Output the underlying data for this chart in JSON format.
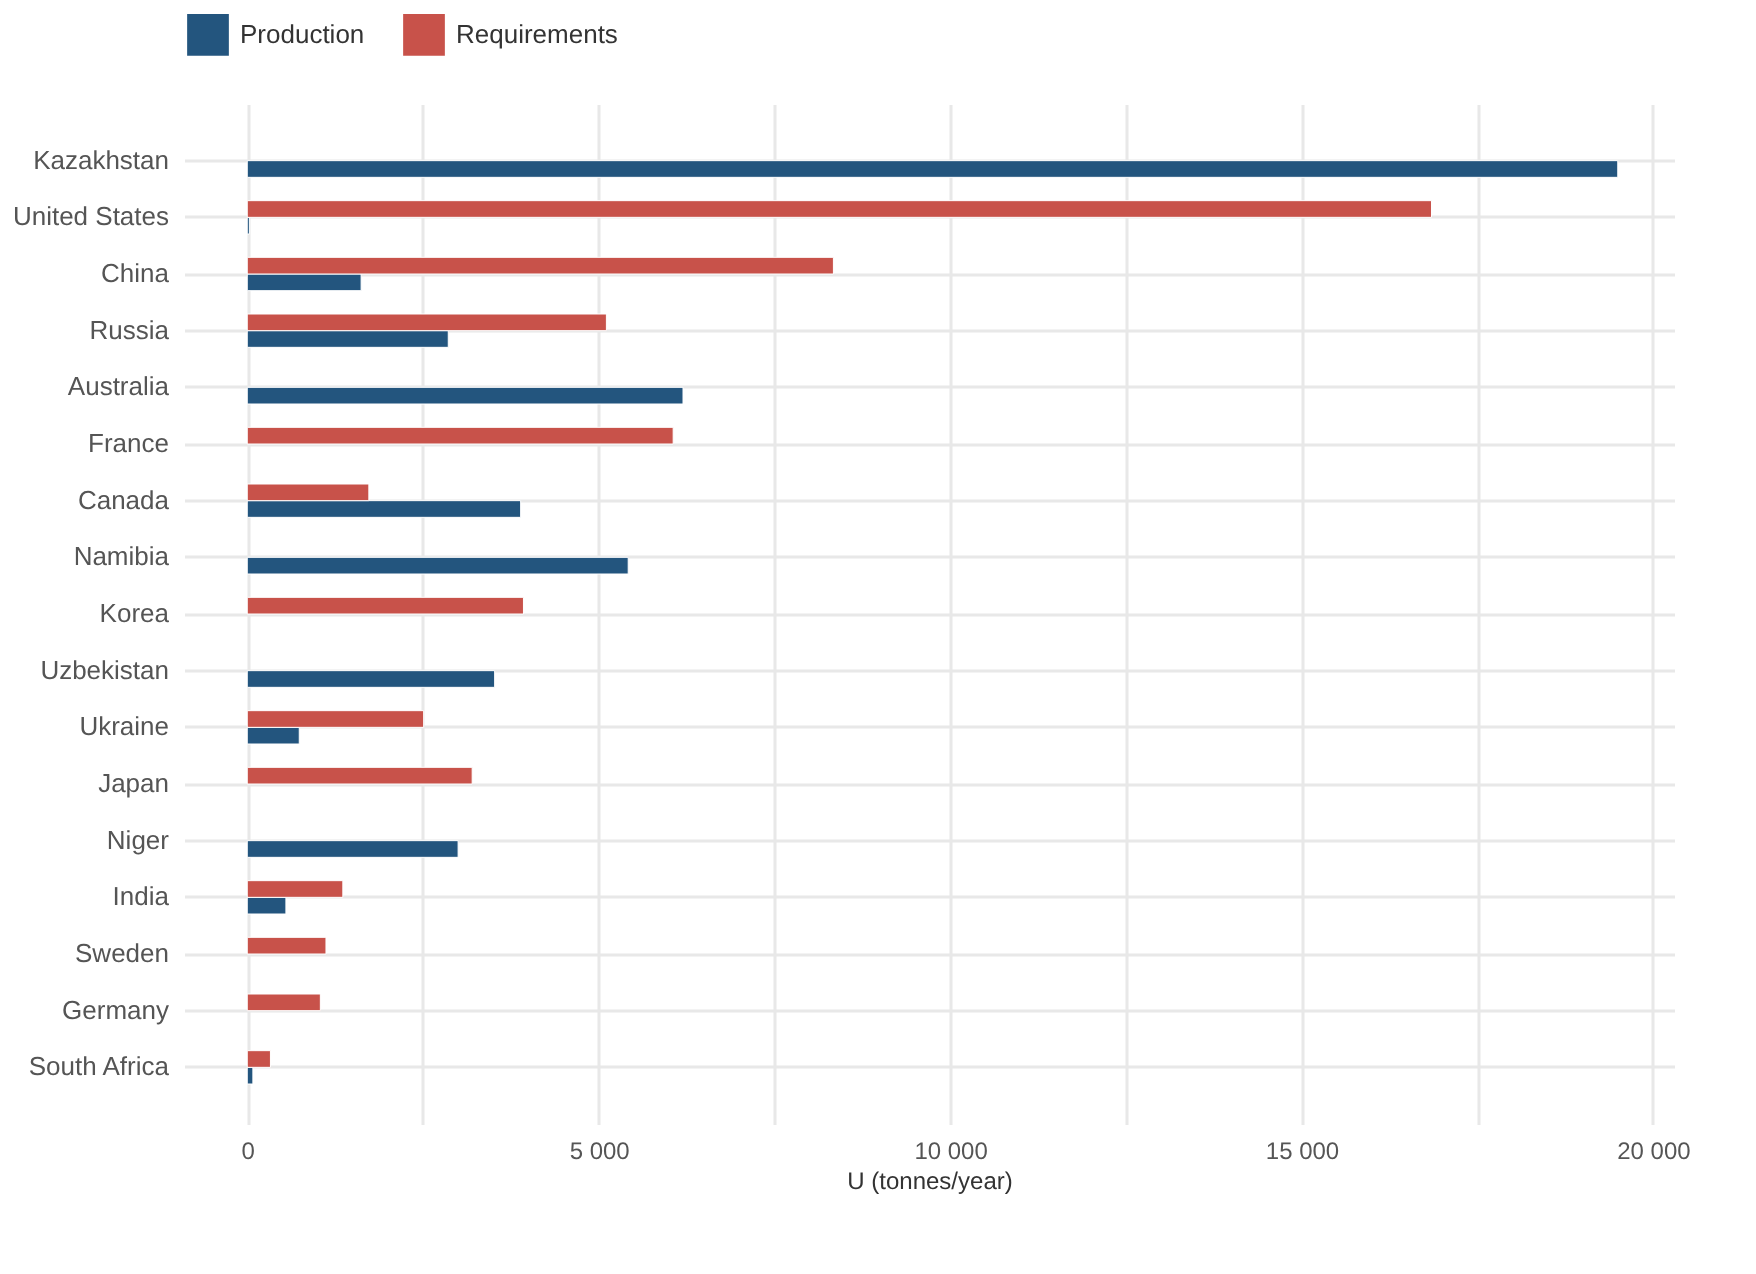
{
  "chart_data": {
    "type": "bar",
    "orientation": "horizontal",
    "xlabel": "U (tonnes/year)",
    "legend": "top",
    "grid": true,
    "categories": [
      "Kazakhstan",
      "United States",
      "China",
      "Russia",
      "Australia",
      "France",
      "Canada",
      "Namibia",
      "Korea",
      "Uzbekistan",
      "Ukraine",
      "Japan",
      "Niger",
      "India",
      "Sweden",
      "Germany",
      "South Africa"
    ],
    "series": [
      {
        "name": "Production",
        "color": "#23557e",
        "values": [
          19500,
          30,
          1620,
          2860,
          6200,
          null,
          3890,
          5420,
          null,
          3520,
          740,
          null,
          3000,
          550,
          null,
          null,
          80
        ]
      },
      {
        "name": "Requirements",
        "color": "#c8524a",
        "values": [
          null,
          16850,
          8340,
          5110,
          null,
          6060,
          1730,
          null,
          3930,
          null,
          2510,
          3200,
          null,
          1360,
          1120,
          1040,
          330
        ]
      }
    ],
    "xlim": [
      -900,
      20300
    ],
    "xticks": [
      0,
      {
        "value": 2500,
        "label": null
      },
      {
        "value": 5000,
        "label": "5 000"
      },
      {
        "value": 7500,
        "label": null
      },
      {
        "value": 10000,
        "label": "10 000"
      },
      {
        "value": 12500,
        "label": null
      },
      {
        "value": 15000,
        "label": "15 000"
      },
      {
        "value": 17500,
        "label": null
      },
      {
        "value": 20000,
        "label": "20 000"
      }
    ]
  }
}
